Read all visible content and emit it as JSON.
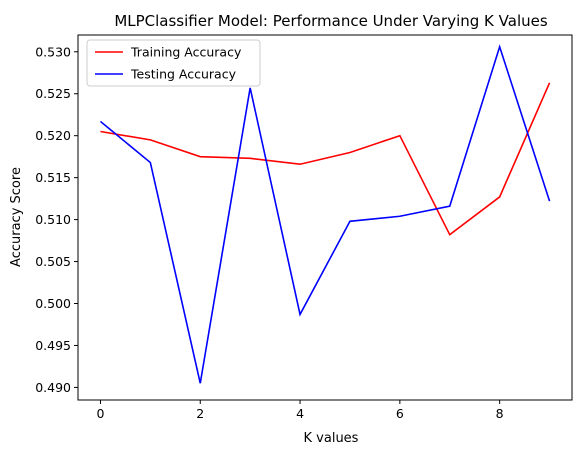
{
  "chart_data": {
    "type": "line",
    "title": "MLPClassifier Model: Performance Under Varying K Values",
    "xlabel": "K values",
    "ylabel": "Accuracy Score",
    "x": [
      0,
      1,
      2,
      3,
      4,
      5,
      6,
      7,
      8,
      9
    ],
    "xlim": [
      -0.45,
      9.45
    ],
    "ylim": [
      0.4885,
      0.532
    ],
    "xticks": [
      0,
      2,
      4,
      6,
      8
    ],
    "yticks": [
      0.49,
      0.495,
      0.5,
      0.505,
      0.51,
      0.515,
      0.52,
      0.525,
      0.53
    ],
    "ytick_labels": [
      "0.490",
      "0.495",
      "0.500",
      "0.505",
      "0.510",
      "0.515",
      "0.520",
      "0.525",
      "0.530"
    ],
    "grid": false,
    "legend_position": "top-left",
    "series": [
      {
        "name": "Training Accuracy",
        "color": "#ff0000",
        "values": [
          0.5205,
          0.5195,
          0.5175,
          0.5173,
          0.5166,
          0.518,
          0.52,
          0.5082,
          0.5127,
          0.5263
        ]
      },
      {
        "name": "Testing Accuracy",
        "color": "#0000ff",
        "values": [
          0.5217,
          0.5168,
          0.4905,
          0.5257,
          0.4987,
          0.5098,
          0.5104,
          0.5116,
          0.5306,
          0.5122
        ]
      }
    ]
  }
}
